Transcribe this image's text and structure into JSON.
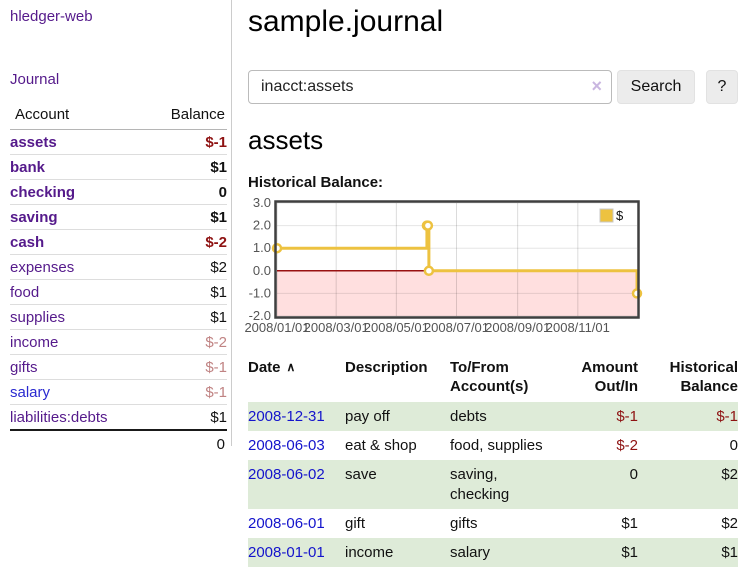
{
  "app": {
    "title": "hledger-web"
  },
  "sidebar": {
    "journal_link": "Journal",
    "accounts_table": {
      "headers": {
        "account": "Account",
        "balance": "Balance"
      },
      "rows": [
        {
          "account": "assets",
          "balance": "$-1",
          "indent": 1,
          "bold": true,
          "balance_style": "neg-strong"
        },
        {
          "account": "bank",
          "balance": "$1",
          "indent": 2,
          "bold": true,
          "balance_style": "pos"
        },
        {
          "account": "checking",
          "balance": "0",
          "indent": 3,
          "bold": true,
          "balance_style": "pos"
        },
        {
          "account": "saving",
          "balance": "$1",
          "indent": 3,
          "bold": true,
          "balance_style": "pos"
        },
        {
          "account": "cash",
          "balance": "$-2",
          "indent": 2,
          "bold": true,
          "balance_style": "neg-strong"
        },
        {
          "account": "expenses",
          "balance": "$2",
          "indent": 1,
          "bold": false,
          "balance_style": "pos"
        },
        {
          "account": "food",
          "balance": "$1",
          "indent": 2,
          "bold": false,
          "balance_style": "pos"
        },
        {
          "account": "supplies",
          "balance": "$1",
          "indent": 2,
          "bold": false,
          "balance_style": "pos"
        },
        {
          "account": "income",
          "balance": "$-2",
          "indent": 1,
          "bold": false,
          "balance_style": "neg-faded"
        },
        {
          "account": "gifts",
          "balance": "$-1",
          "indent": 2,
          "bold": false,
          "balance_style": "neg-faded"
        },
        {
          "account": "salary",
          "balance": "$-1",
          "indent": 2,
          "bold": false,
          "balance_style": "neg-faded",
          "link_style": "unvisited"
        },
        {
          "account": "liabilities:debts",
          "balance": "$1",
          "indent": 1,
          "bold": false,
          "balance_style": "pos"
        }
      ],
      "total": "0"
    }
  },
  "header": {
    "title": "sample.journal"
  },
  "search": {
    "value": "inacct:assets",
    "button_label": "Search",
    "help_label": "?"
  },
  "account_page": {
    "title": "assets",
    "chart_label": "Historical Balance:"
  },
  "chart_data": {
    "type": "line",
    "step": true,
    "title": "Historical Balance:",
    "legend": {
      "position": "top-right",
      "entries": [
        "$"
      ]
    },
    "series": [
      {
        "name": "$",
        "color": "#edc240",
        "points": [
          {
            "date": "2008-01-01",
            "value": 1
          },
          {
            "date": "2008-06-01",
            "value": 2
          },
          {
            "date": "2008-06-02",
            "value": 2
          },
          {
            "date": "2008-06-03",
            "value": 0
          },
          {
            "date": "2008-12-31",
            "value": -1
          }
        ]
      }
    ],
    "x_ticks": [
      "2008/01/01",
      "2008/03/01",
      "2008/05/01",
      "2008/07/01",
      "2008/09/01",
      "2008/11/01"
    ],
    "y_ticks": [
      "3.0",
      "2.0",
      "1.0",
      "0.0",
      "-1.0",
      "-2.0"
    ],
    "ylim": [
      -2,
      3
    ],
    "x_range": [
      "2008-01-01",
      "2008-12-31"
    ],
    "grid": true,
    "negative_region_color": "#ffdfdf",
    "zero_line_color": "#991111",
    "frame_color": "#3f3f3f",
    "tick_label_color": "#545454"
  },
  "transactions": {
    "columns": [
      {
        "label": "Date",
        "sorted": "asc",
        "align": "left"
      },
      {
        "label": "Description",
        "align": "left"
      },
      {
        "label": "To/From Account(s)",
        "align": "left"
      },
      {
        "label": "Amount Out/In",
        "align": "right"
      },
      {
        "label": "Historical Balance",
        "align": "right"
      }
    ],
    "rows": [
      {
        "date": "2008-12-31",
        "description": "pay off",
        "accounts": "debts",
        "amount": "$-1",
        "balance": "$-1"
      },
      {
        "date": "2008-06-03",
        "description": "eat & shop",
        "accounts": "food, supplies",
        "amount": "$-2",
        "balance": "0"
      },
      {
        "date": "2008-06-02",
        "description": "save",
        "accounts": "saving, checking",
        "amount": "0",
        "balance": "$2"
      },
      {
        "date": "2008-06-01",
        "description": "gift",
        "accounts": "gifts",
        "amount": "$1",
        "balance": "$2"
      },
      {
        "date": "2008-01-01",
        "description": "income",
        "accounts": "salary",
        "amount": "$1",
        "balance": "$1"
      }
    ]
  },
  "icons": {
    "sort_ascending": "∧",
    "clear_search": "×"
  },
  "colors": {
    "accent_purple": "#551a8b",
    "link_blue": "#1414cc",
    "negative": "#8e1212",
    "negative_faded": "#c08383",
    "row_green": "#deebd8",
    "chart_line": "#edc240"
  }
}
